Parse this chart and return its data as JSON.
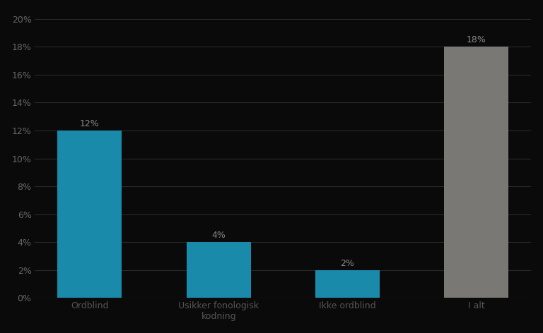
{
  "categories": [
    "Ordblind",
    "Usikker fonologisk\nkodning",
    "Ikke ordblind",
    "I alt"
  ],
  "values": [
    12,
    4,
    2,
    18
  ],
  "bar_colors": [
    "#1a8aab",
    "#1a8aab",
    "#1a8aab",
    "#7a7874"
  ],
  "background_color": "#0a0a0a",
  "plot_bg_color": "#0a0a0a",
  "yticks": [
    0,
    2,
    4,
    6,
    8,
    10,
    12,
    14,
    16,
    18,
    20
  ],
  "ylim": [
    0,
    20.5
  ],
  "grid_color": "#2a2a2a",
  "tick_color": "#666666",
  "label_color": "#555555",
  "value_color": "#888888",
  "label_fontsize": 9,
  "value_fontsize": 9,
  "bar_width": 0.5
}
